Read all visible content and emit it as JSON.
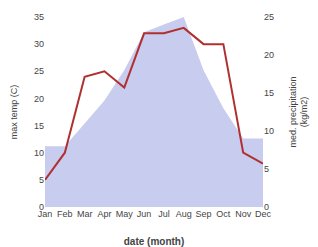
{
  "chart_data": {
    "type": "line",
    "xlabel": "date (month)",
    "ylabel": "max temp (C)",
    "y2label": "med. precipitation\n(kg/m2)",
    "categories": [
      "Jan",
      "Feb",
      "Mar",
      "Apr",
      "May",
      "Jun",
      "Jul",
      "Aug",
      "Sep",
      "Oct",
      "Nov",
      "Dec"
    ],
    "series": [
      {
        "type": "area",
        "axis": "y2",
        "color": "#c8ccee",
        "values": [
          8,
          8,
          11,
          14,
          18,
          23,
          24,
          25,
          18,
          13,
          9,
          9
        ]
      },
      {
        "type": "line",
        "color": "#b03030",
        "values": [
          5,
          10,
          24,
          25,
          22,
          32,
          32,
          33,
          30,
          30,
          10,
          8
        ]
      }
    ],
    "ylim": [
      0,
      35
    ],
    "yticks": [
      0,
      5,
      10,
      15,
      20,
      25,
      30,
      35
    ],
    "y2lim": [
      0,
      25
    ],
    "y2ticks": [
      0,
      5,
      10,
      15,
      20,
      25
    ],
    "grid": false
  }
}
